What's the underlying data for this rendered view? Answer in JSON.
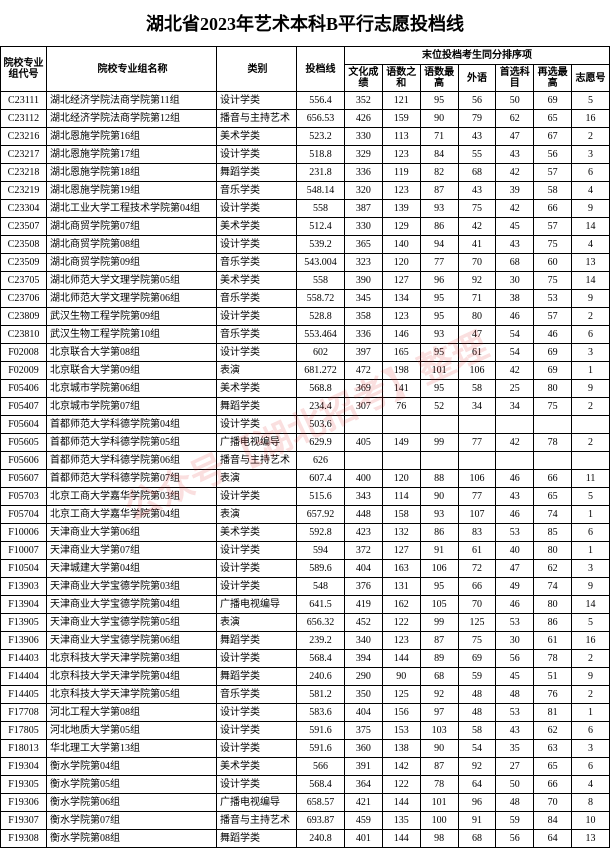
{
  "title": "湖北省2023年艺术本科B平行志愿投档线",
  "header": {
    "group_top": "末位投档考生同分排序项",
    "cols": [
      "院校专业组代号",
      "院校专业组名称",
      "类别",
      "投档线",
      "文化成绩",
      "语数之和",
      "语数最高",
      "外语",
      "首选科目",
      "再选最高",
      "志愿号"
    ]
  },
  "watermark": "公众号【湖北招考】整理",
  "rows": [
    {
      "code": "C23111",
      "name": "湖北经济学院法商学院第11组",
      "cat": "设计学类",
      "score": "556.4",
      "v": [
        "352",
        "121",
        "95",
        "56",
        "50",
        "69",
        "5"
      ]
    },
    {
      "code": "C23112",
      "name": "湖北经济学院法商学院第12组",
      "cat": "播音与主持艺术",
      "score": "656.53",
      "v": [
        "426",
        "159",
        "90",
        "79",
        "62",
        "65",
        "16"
      ]
    },
    {
      "code": "C23216",
      "name": "湖北恩施学院第16组",
      "cat": "美术学类",
      "score": "523.2",
      "v": [
        "330",
        "113",
        "71",
        "43",
        "47",
        "67",
        "2"
      ]
    },
    {
      "code": "C23217",
      "name": "湖北恩施学院第17组",
      "cat": "设计学类",
      "score": "518.8",
      "v": [
        "329",
        "123",
        "84",
        "55",
        "43",
        "56",
        "3"
      ]
    },
    {
      "code": "C23218",
      "name": "湖北恩施学院第18组",
      "cat": "舞蹈学类",
      "score": "231.8",
      "v": [
        "336",
        "119",
        "82",
        "68",
        "42",
        "57",
        "6"
      ]
    },
    {
      "code": "C23219",
      "name": "湖北恩施学院第19组",
      "cat": "音乐学类",
      "score": "548.14",
      "v": [
        "320",
        "123",
        "87",
        "43",
        "39",
        "58",
        "4"
      ]
    },
    {
      "code": "C23304",
      "name": "湖北工业大学工程技术学院第04组",
      "cat": "设计学类",
      "score": "558",
      "v": [
        "387",
        "139",
        "93",
        "75",
        "42",
        "66",
        "9"
      ]
    },
    {
      "code": "C23507",
      "name": "湖北商贸学院第07组",
      "cat": "美术学类",
      "score": "512.4",
      "v": [
        "330",
        "129",
        "86",
        "42",
        "45",
        "57",
        "14"
      ]
    },
    {
      "code": "C23508",
      "name": "湖北商贸学院第08组",
      "cat": "设计学类",
      "score": "539.2",
      "v": [
        "365",
        "140",
        "94",
        "41",
        "43",
        "75",
        "4"
      ]
    },
    {
      "code": "C23509",
      "name": "湖北商贸学院第09组",
      "cat": "音乐学类",
      "score": "543.004",
      "v": [
        "323",
        "120",
        "77",
        "70",
        "68",
        "60",
        "13"
      ]
    },
    {
      "code": "C23705",
      "name": "湖北师范大学文理学院第05组",
      "cat": "美术学类",
      "score": "558",
      "v": [
        "390",
        "127",
        "96",
        "92",
        "30",
        "75",
        "14"
      ]
    },
    {
      "code": "C23706",
      "name": "湖北师范大学文理学院第06组",
      "cat": "音乐学类",
      "score": "558.72",
      "v": [
        "345",
        "134",
        "95",
        "71",
        "38",
        "53",
        "9"
      ]
    },
    {
      "code": "C23809",
      "name": "武汉生物工程学院第09组",
      "cat": "设计学类",
      "score": "528.8",
      "v": [
        "358",
        "123",
        "95",
        "80",
        "46",
        "57",
        "2"
      ]
    },
    {
      "code": "C23810",
      "name": "武汉生物工程学院第10组",
      "cat": "音乐学类",
      "score": "553.464",
      "v": [
        "336",
        "146",
        "93",
        "47",
        "54",
        "46",
        "6"
      ]
    },
    {
      "code": "F02008",
      "name": "北京联合大学第08组",
      "cat": "设计学类",
      "score": "602",
      "v": [
        "397",
        "165",
        "95",
        "61",
        "54",
        "69",
        "3"
      ]
    },
    {
      "code": "F02009",
      "name": "北京联合大学第09组",
      "cat": "表演",
      "score": "681.272",
      "v": [
        "472",
        "198",
        "101",
        "106",
        "42",
        "69",
        "1"
      ]
    },
    {
      "code": "F05406",
      "name": "北京城市学院第06组",
      "cat": "美术学类",
      "score": "568.8",
      "v": [
        "369",
        "141",
        "95",
        "58",
        "25",
        "80",
        "9"
      ]
    },
    {
      "code": "F05407",
      "name": "北京城市学院第07组",
      "cat": "舞蹈学类",
      "score": "234.4",
      "v": [
        "307",
        "76",
        "52",
        "34",
        "34",
        "75",
        "2"
      ]
    },
    {
      "code": "F05604",
      "name": "首都师范大学科德学院第04组",
      "cat": "设计学类",
      "score": "503.6",
      "v": [
        "",
        "",
        "",
        "",
        "",
        "",
        ""
      ]
    },
    {
      "code": "F05605",
      "name": "首都师范大学科德学院第05组",
      "cat": "广播电视编导",
      "score": "629.9",
      "v": [
        "405",
        "149",
        "99",
        "77",
        "42",
        "78",
        "2"
      ]
    },
    {
      "code": "F05606",
      "name": "首都师范大学科德学院第06组",
      "cat": "播音与主持艺术",
      "score": "626",
      "v": [
        "",
        "",
        "",
        "",
        "",
        "",
        ""
      ]
    },
    {
      "code": "F05607",
      "name": "首都师范大学科德学院第07组",
      "cat": "表演",
      "score": "607.4",
      "v": [
        "400",
        "120",
        "88",
        "106",
        "46",
        "66",
        "11"
      ]
    },
    {
      "code": "F05703",
      "name": "北京工商大学嘉华学院第03组",
      "cat": "设计学类",
      "score": "515.6",
      "v": [
        "343",
        "114",
        "90",
        "77",
        "43",
        "65",
        "5"
      ]
    },
    {
      "code": "F05704",
      "name": "北京工商大学嘉华学院第04组",
      "cat": "表演",
      "score": "657.92",
      "v": [
        "448",
        "158",
        "93",
        "107",
        "46",
        "74",
        "1"
      ]
    },
    {
      "code": "F10006",
      "name": "天津商业大学第06组",
      "cat": "美术学类",
      "score": "592.8",
      "v": [
        "423",
        "132",
        "86",
        "83",
        "53",
        "85",
        "6"
      ]
    },
    {
      "code": "F10007",
      "name": "天津商业大学第07组",
      "cat": "设计学类",
      "score": "594",
      "v": [
        "372",
        "127",
        "91",
        "61",
        "40",
        "80",
        "1"
      ]
    },
    {
      "code": "F10504",
      "name": "天津城建大学第04组",
      "cat": "设计学类",
      "score": "589.6",
      "v": [
        "404",
        "163",
        "106",
        "72",
        "47",
        "62",
        "3"
      ]
    },
    {
      "code": "F13903",
      "name": "天津商业大学宝德学院第03组",
      "cat": "设计学类",
      "score": "548",
      "v": [
        "376",
        "131",
        "95",
        "66",
        "49",
        "74",
        "9"
      ]
    },
    {
      "code": "F13904",
      "name": "天津商业大学宝德学院第04组",
      "cat": "广播电视编导",
      "score": "641.5",
      "v": [
        "419",
        "162",
        "105",
        "70",
        "46",
        "80",
        "14"
      ]
    },
    {
      "code": "F13905",
      "name": "天津商业大学宝德学院第05组",
      "cat": "表演",
      "score": "656.32",
      "v": [
        "452",
        "122",
        "99",
        "125",
        "53",
        "86",
        "5"
      ]
    },
    {
      "code": "F13906",
      "name": "天津商业大学宝德学院第06组",
      "cat": "舞蹈学类",
      "score": "239.2",
      "v": [
        "340",
        "123",
        "87",
        "75",
        "30",
        "61",
        "16"
      ]
    },
    {
      "code": "F14403",
      "name": "北京科技大学天津学院第03组",
      "cat": "设计学类",
      "score": "568.4",
      "v": [
        "394",
        "144",
        "89",
        "69",
        "56",
        "78",
        "2"
      ]
    },
    {
      "code": "F14404",
      "name": "北京科技大学天津学院第04组",
      "cat": "舞蹈学类",
      "score": "240.6",
      "v": [
        "290",
        "90",
        "68",
        "59",
        "45",
        "51",
        "9"
      ]
    },
    {
      "code": "F14405",
      "name": "北京科技大学天津学院第05组",
      "cat": "音乐学类",
      "score": "581.2",
      "v": [
        "350",
        "125",
        "92",
        "48",
        "48",
        "76",
        "2"
      ]
    },
    {
      "code": "F17708",
      "name": "河北工程大学第08组",
      "cat": "设计学类",
      "score": "583.6",
      "v": [
        "404",
        "156",
        "97",
        "48",
        "53",
        "81",
        "1"
      ]
    },
    {
      "code": "F17805",
      "name": "河北地质大学第05组",
      "cat": "设计学类",
      "score": "591.6",
      "v": [
        "375",
        "153",
        "103",
        "58",
        "43",
        "62",
        "6"
      ]
    },
    {
      "code": "F18013",
      "name": "华北理工大学第13组",
      "cat": "设计学类",
      "score": "591.6",
      "v": [
        "360",
        "138",
        "90",
        "54",
        "35",
        "63",
        "3"
      ]
    },
    {
      "code": "F19304",
      "name": "衡水学院第04组",
      "cat": "美术学类",
      "score": "566",
      "v": [
        "391",
        "142",
        "87",
        "92",
        "27",
        "65",
        "6"
      ]
    },
    {
      "code": "F19305",
      "name": "衡水学院第05组",
      "cat": "设计学类",
      "score": "568.4",
      "v": [
        "364",
        "122",
        "78",
        "64",
        "50",
        "66",
        "4"
      ]
    },
    {
      "code": "F19306",
      "name": "衡水学院第06组",
      "cat": "广播电视编导",
      "score": "658.57",
      "v": [
        "421",
        "144",
        "101",
        "96",
        "48",
        "70",
        "8"
      ]
    },
    {
      "code": "F19307",
      "name": "衡水学院第07组",
      "cat": "播音与主持艺术",
      "score": "693.87",
      "v": [
        "459",
        "135",
        "100",
        "91",
        "59",
        "84",
        "10"
      ]
    },
    {
      "code": "F19308",
      "name": "衡水学院第08组",
      "cat": "舞蹈学类",
      "score": "240.8",
      "v": [
        "401",
        "144",
        "98",
        "68",
        "56",
        "64",
        "13"
      ]
    }
  ]
}
